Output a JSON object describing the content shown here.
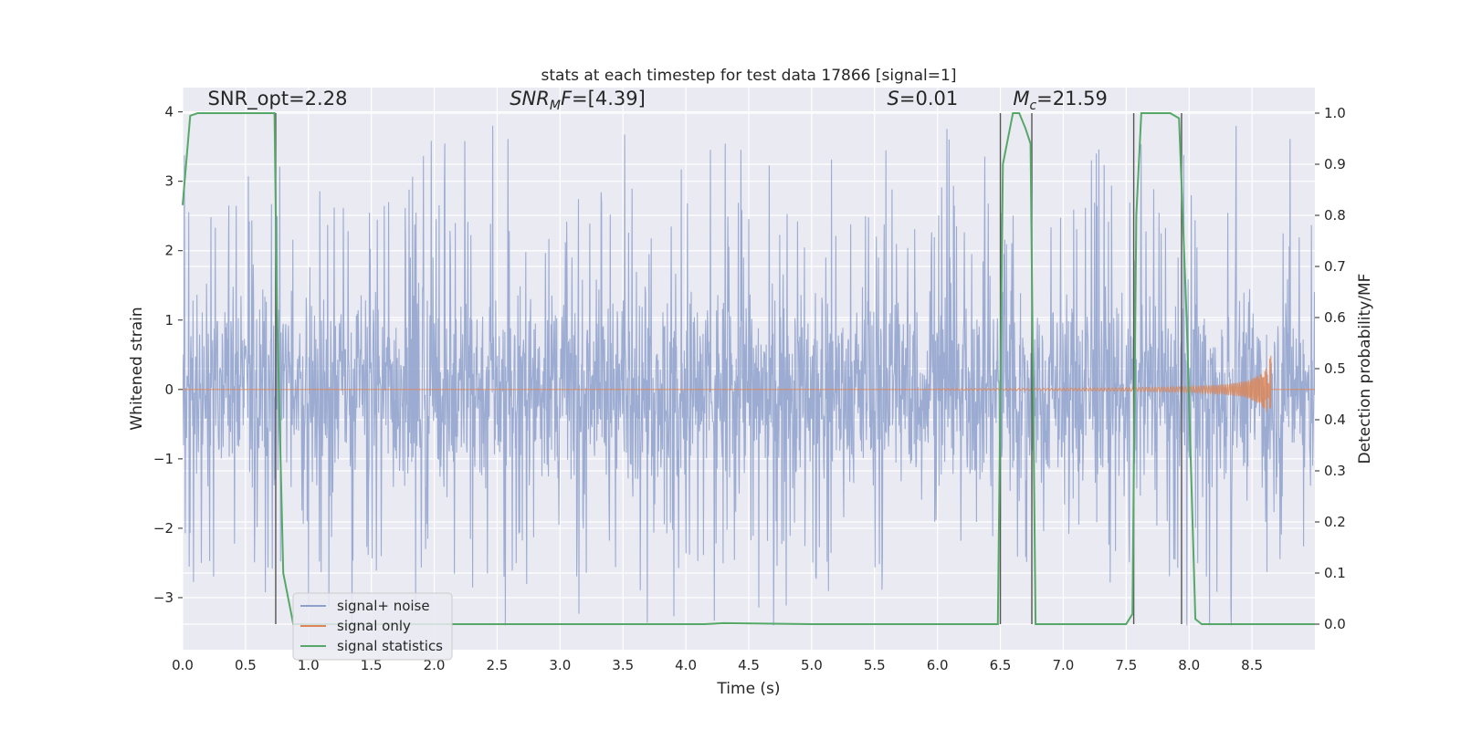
{
  "chart_data": {
    "type": "line",
    "title": "stats at each timestep for test data 17866 [signal=1]",
    "xlabel": "Time (s)",
    "ylabel_left": "Whitened strain",
    "ylabel_right": "Detection probability/MF",
    "xlim": [
      0.0,
      9.0
    ],
    "ylim_left": [
      -3.75,
      4.35
    ],
    "ylim_right": [
      -0.05,
      1.05
    ],
    "xticks": [
      "0.0",
      "0.5",
      "1.0",
      "1.5",
      "2.0",
      "2.5",
      "3.0",
      "3.5",
      "4.0",
      "4.5",
      "5.0",
      "5.5",
      "6.0",
      "6.5",
      "7.0",
      "7.5",
      "8.0",
      "8.5"
    ],
    "yticks_left": [
      "−3",
      "−2",
      "−1",
      "0",
      "1",
      "2",
      "3",
      "4"
    ],
    "yticks_right": [
      "0.0",
      "0.1",
      "0.2",
      "0.3",
      "0.4",
      "0.5",
      "0.6",
      "0.7",
      "0.8",
      "0.9",
      "1.0"
    ],
    "grid": true,
    "legend_position": "lower-left",
    "annotations": [
      {
        "id": "snr_opt",
        "text": "SNR_opt=2.28",
        "x": 0.2,
        "y": 4.1
      },
      {
        "id": "snr_mf",
        "text": "[4.39]",
        "x": 2.6,
        "y": 4.1
      },
      {
        "id": "s_stat",
        "text": "=0.01",
        "x": 5.6,
        "y": 4.1
      },
      {
        "id": "mc",
        "text": "=21.59",
        "x": 6.6,
        "y": 4.1
      }
    ],
    "annotation_math": {
      "snr_mf_prefix": "SNR",
      "snr_mf_sub": "M",
      "snr_mf_mid": "F=",
      "s_symbol": "S",
      "mc_symbol": "M",
      "mc_sub": "c"
    },
    "vertical_lines_x": [
      0.74,
      6.5,
      6.75,
      7.56,
      7.94
    ],
    "series": [
      {
        "name": "signal+ noise",
        "color": "#8da0cb",
        "kind": "noise",
        "t_end": 9.0,
        "core_range": [
          -1.8,
          1.8
        ],
        "peak_range": [
          -3.4,
          4.0
        ]
      },
      {
        "name": "signal only",
        "color": "#dd8452",
        "kind": "chirp",
        "t_start": 6.0,
        "t_end": 8.65,
        "peak_amplitude": 0.5
      },
      {
        "name": "signal statistics",
        "color": "#55a868",
        "kind": "line",
        "x": [
          0.0,
          0.06,
          0.12,
          0.3,
          0.5,
          0.68,
          0.73,
          0.75,
          0.8,
          0.88,
          1.0,
          2.0,
          2.5,
          3.0,
          4.0,
          4.15,
          4.3,
          5.0,
          6.0,
          6.48,
          6.52,
          6.6,
          6.65,
          6.7,
          6.74,
          6.78,
          6.8,
          7.0,
          7.5,
          7.55,
          7.58,
          7.62,
          7.7,
          7.85,
          7.92,
          7.98,
          8.05,
          8.1,
          8.2,
          9.0
        ],
        "y": [
          0.82,
          0.995,
          1.0,
          1.0,
          1.0,
          1.0,
          1.0,
          0.62,
          0.1,
          0.0,
          0.0,
          0.0,
          0.0,
          0.0,
          0.0,
          0.0,
          0.002,
          0.0,
          0.0,
          0.0,
          0.9,
          1.0,
          1.0,
          0.97,
          0.94,
          0.0,
          0.0,
          0.0,
          0.0,
          0.02,
          0.8,
          1.0,
          1.0,
          1.0,
          0.99,
          0.6,
          0.01,
          0.0,
          0.0,
          0.0
        ]
      }
    ]
  }
}
